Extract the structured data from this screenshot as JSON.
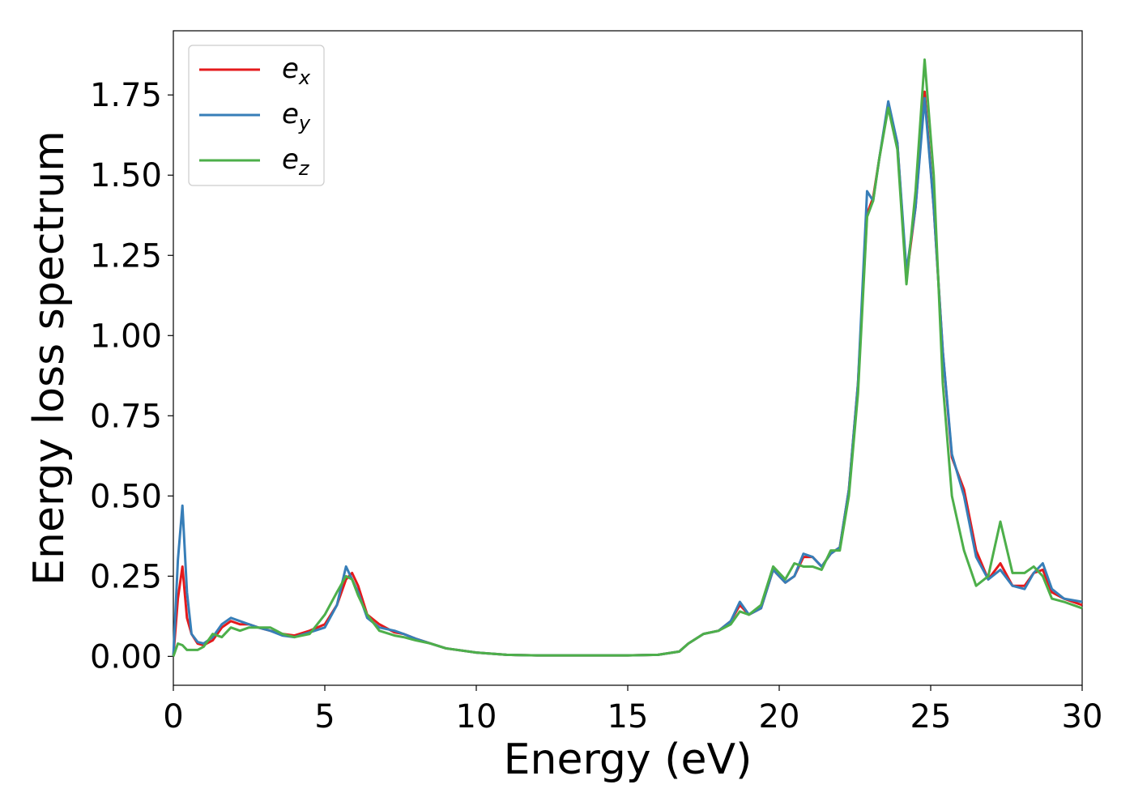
{
  "chart_data": {
    "type": "line",
    "xlabel": "Energy (eV)",
    "ylabel": "Energy loss spectrum",
    "x": [
      0,
      0.15,
      0.3,
      0.45,
      0.6,
      0.8,
      1.0,
      1.3,
      1.6,
      1.9,
      2.2,
      2.5,
      2.8,
      3.2,
      3.6,
      4.0,
      4.5,
      5.0,
      5.4,
      5.7,
      5.9,
      6.1,
      6.4,
      6.8,
      7.3,
      7.6,
      8,
      8.5,
      9,
      10,
      11,
      12,
      13,
      14,
      15,
      16,
      16.7,
      17,
      17.5,
      18,
      18.4,
      18.7,
      19,
      19.4,
      19.8,
      20.2,
      20.5,
      20.8,
      21.1,
      21.4,
      21.7,
      22,
      22.3,
      22.6,
      22.9,
      23.1,
      23.3,
      23.6,
      23.9,
      24.2,
      24.5,
      24.8,
      25.1,
      25.4,
      25.7,
      26.1,
      26.5,
      26.9,
      27.3,
      27.7,
      28.1,
      28.4,
      28.7,
      29,
      29.4,
      30
    ],
    "series": [
      {
        "name": "ex",
        "color": "#e41a1c",
        "values": [
          0,
          0.18,
          0.28,
          0.12,
          0.07,
          0.04,
          0.035,
          0.05,
          0.09,
          0.11,
          0.1,
          0.1,
          0.09,
          0.08,
          0.07,
          0.065,
          0.08,
          0.1,
          0.16,
          0.24,
          0.26,
          0.22,
          0.13,
          0.1,
          0.075,
          0.07,
          0.055,
          0.04,
          0.025,
          0.012,
          0.005,
          0.003,
          0.003,
          0.003,
          0.003,
          0.005,
          0.015,
          0.04,
          0.07,
          0.08,
          0.11,
          0.16,
          0.13,
          0.15,
          0.27,
          0.23,
          0.25,
          0.31,
          0.31,
          0.28,
          0.32,
          0.34,
          0.52,
          0.85,
          1.38,
          1.43,
          1.55,
          1.72,
          1.6,
          1.18,
          1.4,
          1.76,
          1.4,
          0.95,
          0.62,
          0.52,
          0.33,
          0.24,
          0.29,
          0.22,
          0.22,
          0.26,
          0.27,
          0.2,
          0.18,
          0.16
        ]
      },
      {
        "name": "ey",
        "color": "#377eb8",
        "values": [
          0,
          0.3,
          0.47,
          0.2,
          0.07,
          0.045,
          0.04,
          0.06,
          0.1,
          0.12,
          0.11,
          0.1,
          0.09,
          0.08,
          0.065,
          0.06,
          0.075,
          0.09,
          0.16,
          0.28,
          0.24,
          0.2,
          0.12,
          0.09,
          0.08,
          0.07,
          0.055,
          0.04,
          0.025,
          0.012,
          0.005,
          0.003,
          0.003,
          0.003,
          0.003,
          0.005,
          0.015,
          0.04,
          0.07,
          0.08,
          0.11,
          0.17,
          0.13,
          0.15,
          0.27,
          0.23,
          0.25,
          0.32,
          0.31,
          0.28,
          0.32,
          0.34,
          0.52,
          0.85,
          1.45,
          1.42,
          1.55,
          1.73,
          1.6,
          1.2,
          1.4,
          1.74,
          1.4,
          0.95,
          0.63,
          0.5,
          0.31,
          0.24,
          0.27,
          0.22,
          0.21,
          0.26,
          0.29,
          0.21,
          0.18,
          0.17
        ]
      },
      {
        "name": "ez",
        "color": "#4daf4a",
        "values": [
          0,
          0.04,
          0.035,
          0.02,
          0.02,
          0.02,
          0.03,
          0.07,
          0.06,
          0.09,
          0.08,
          0.09,
          0.09,
          0.09,
          0.07,
          0.06,
          0.07,
          0.13,
          0.2,
          0.25,
          0.24,
          0.19,
          0.13,
          0.08,
          0.065,
          0.06,
          0.05,
          0.04,
          0.025,
          0.012,
          0.005,
          0.003,
          0.003,
          0.003,
          0.003,
          0.005,
          0.015,
          0.04,
          0.07,
          0.08,
          0.1,
          0.14,
          0.13,
          0.16,
          0.28,
          0.24,
          0.29,
          0.28,
          0.28,
          0.27,
          0.33,
          0.33,
          0.5,
          0.82,
          1.37,
          1.42,
          1.55,
          1.71,
          1.58,
          1.16,
          1.45,
          1.86,
          1.5,
          0.85,
          0.5,
          0.33,
          0.22,
          0.25,
          0.42,
          0.26,
          0.26,
          0.28,
          0.25,
          0.18,
          0.17,
          0.15
        ]
      }
    ],
    "xlim": [
      0,
      30
    ],
    "ylim": [
      -0.09,
      1.95
    ],
    "xticks": [
      0,
      5,
      10,
      15,
      20,
      25,
      30
    ],
    "yticks": [
      {
        "value": 0,
        "label": "0.00"
      },
      0.25,
      {
        "value": 0.5,
        "label": "0.50"
      },
      0.75,
      {
        "value": 1,
        "label": "1.00"
      },
      1.25,
      {
        "value": 1.5,
        "label": "1.50"
      },
      1.75
    ],
    "legend": "upper left"
  }
}
